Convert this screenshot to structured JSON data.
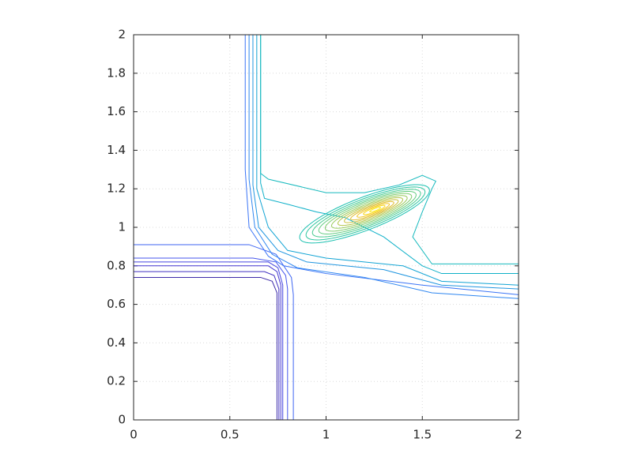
{
  "chart_data": {
    "type": "contour",
    "xlim": [
      0,
      2
    ],
    "ylim": [
      0,
      2
    ],
    "xticks": [
      0,
      0.5,
      1,
      1.5,
      2
    ],
    "yticks": [
      0,
      0.2,
      0.4,
      0.6,
      0.8,
      1,
      1.2,
      1.4,
      1.6,
      1.8,
      2
    ],
    "grid": true,
    "contours": [
      {
        "color": "#3d2aa8",
        "x": [
          0,
          0.66,
          0.72,
          0.745,
          0.745
        ],
        "y": [
          0.74,
          0.74,
          0.72,
          0.66,
          0
        ]
      },
      {
        "color": "#4030c0",
        "x": [
          0,
          0.68,
          0.73,
          0.755,
          0.755
        ],
        "y": [
          0.77,
          0.77,
          0.75,
          0.68,
          0
        ]
      },
      {
        "color": "#4437d0",
        "x": [
          0,
          0.7,
          0.745,
          0.765,
          0.765
        ],
        "y": [
          0.8,
          0.8,
          0.77,
          0.7,
          0
        ]
      },
      {
        "color": "#4646e0",
        "x": [
          0,
          0.7,
          0.75,
          0.775,
          0.775
        ],
        "y": [
          0.82,
          0.82,
          0.79,
          0.7,
          0
        ]
      },
      {
        "color": "#4556ec",
        "x": [
          0,
          0.62,
          0.74,
          0.79,
          0.8,
          0.8
        ],
        "y": [
          0.84,
          0.84,
          0.82,
          0.75,
          0.68,
          0
        ]
      },
      {
        "color": "#3f66f2",
        "x": [
          0,
          0.6,
          0.74,
          0.82,
          0.83,
          0.83
        ],
        "y": [
          0.91,
          0.91,
          0.86,
          0.74,
          0.65,
          0
        ]
      },
      {
        "color": "#3a74f6",
        "x": [
          0.58,
          0.58,
          0.6,
          0.7,
          0.78,
          1.0,
          1.5,
          2
        ],
        "y": [
          2,
          1.3,
          1.0,
          0.85,
          0.8,
          0.76,
          0.7,
          0.65
        ]
      },
      {
        "color": "#2e86f0",
        "x": [
          0.6,
          0.6,
          0.63,
          0.72,
          0.85,
          1.2,
          1.55,
          2
        ],
        "y": [
          2,
          1.25,
          1.0,
          0.86,
          0.79,
          0.74,
          0.66,
          0.63
        ]
      },
      {
        "color": "#2196e0",
        "x": [
          0.62,
          0.62,
          0.65,
          0.75,
          0.9,
          1.3,
          1.6,
          2
        ],
        "y": [
          2,
          1.22,
          1.0,
          0.88,
          0.82,
          0.78,
          0.7,
          0.68
        ]
      },
      {
        "color": "#12a4d4",
        "x": [
          0.64,
          0.64,
          0.7,
          0.8,
          1.0,
          1.4,
          1.6,
          2
        ],
        "y": [
          2,
          1.2,
          1.0,
          0.88,
          0.84,
          0.8,
          0.72,
          0.7
        ]
      },
      {
        "color": "#0eb0c8",
        "x": [
          0.66,
          0.66,
          0.68,
          0.8,
          0.95,
          1.1,
          1.3,
          1.5,
          1.6,
          2
        ],
        "y": [
          2,
          1.23,
          1.15,
          1.12,
          1.08,
          1.05,
          0.95,
          0.8,
          0.76,
          0.76
        ]
      },
      {
        "color": "#16b9bd",
        "x": [
          0.66,
          0.66,
          0.7,
          1.0,
          1.2,
          1.38,
          1.5,
          1.57,
          1.55,
          1.5,
          1.45,
          1.55,
          2
        ],
        "y": [
          2,
          1.28,
          1.25,
          1.18,
          1.18,
          1.22,
          1.27,
          1.24,
          1.2,
          1.08,
          0.95,
          0.81,
          0.81
        ]
      }
    ],
    "ellipse_angle": 21,
    "ellipses": [
      {
        "color": "#1cc0b0",
        "cx": 1.2,
        "cy": 1.07,
        "rx": 0.36,
        "ry": 0.085
      },
      {
        "color": "#30c6a0",
        "cx": 1.205,
        "cy": 1.072,
        "rx": 0.33,
        "ry": 0.075
      },
      {
        "color": "#48ca90",
        "cx": 1.21,
        "cy": 1.074,
        "rx": 0.3,
        "ry": 0.066
      },
      {
        "color": "#62cc80",
        "cx": 1.215,
        "cy": 1.076,
        "rx": 0.27,
        "ry": 0.058
      },
      {
        "color": "#7ecc6e",
        "cx": 1.22,
        "cy": 1.078,
        "rx": 0.24,
        "ry": 0.05
      },
      {
        "color": "#98ca5c",
        "cx": 1.225,
        "cy": 1.08,
        "rx": 0.21,
        "ry": 0.042
      },
      {
        "color": "#b2c64a",
        "cx": 1.23,
        "cy": 1.082,
        "rx": 0.18,
        "ry": 0.035
      },
      {
        "color": "#cac03a",
        "cx": 1.235,
        "cy": 1.084,
        "rx": 0.15,
        "ry": 0.028
      },
      {
        "color": "#e0bc2c",
        "cx": 1.24,
        "cy": 1.086,
        "rx": 0.12,
        "ry": 0.022
      },
      {
        "color": "#f2c622",
        "cx": 1.245,
        "cy": 1.088,
        "rx": 0.09,
        "ry": 0.016
      },
      {
        "color": "#f8d81c",
        "cx": 1.25,
        "cy": 1.09,
        "rx": 0.06,
        "ry": 0.011
      },
      {
        "color": "#f9ea14",
        "cx": 1.255,
        "cy": 1.092,
        "rx": 0.03,
        "ry": 0.006
      }
    ]
  }
}
